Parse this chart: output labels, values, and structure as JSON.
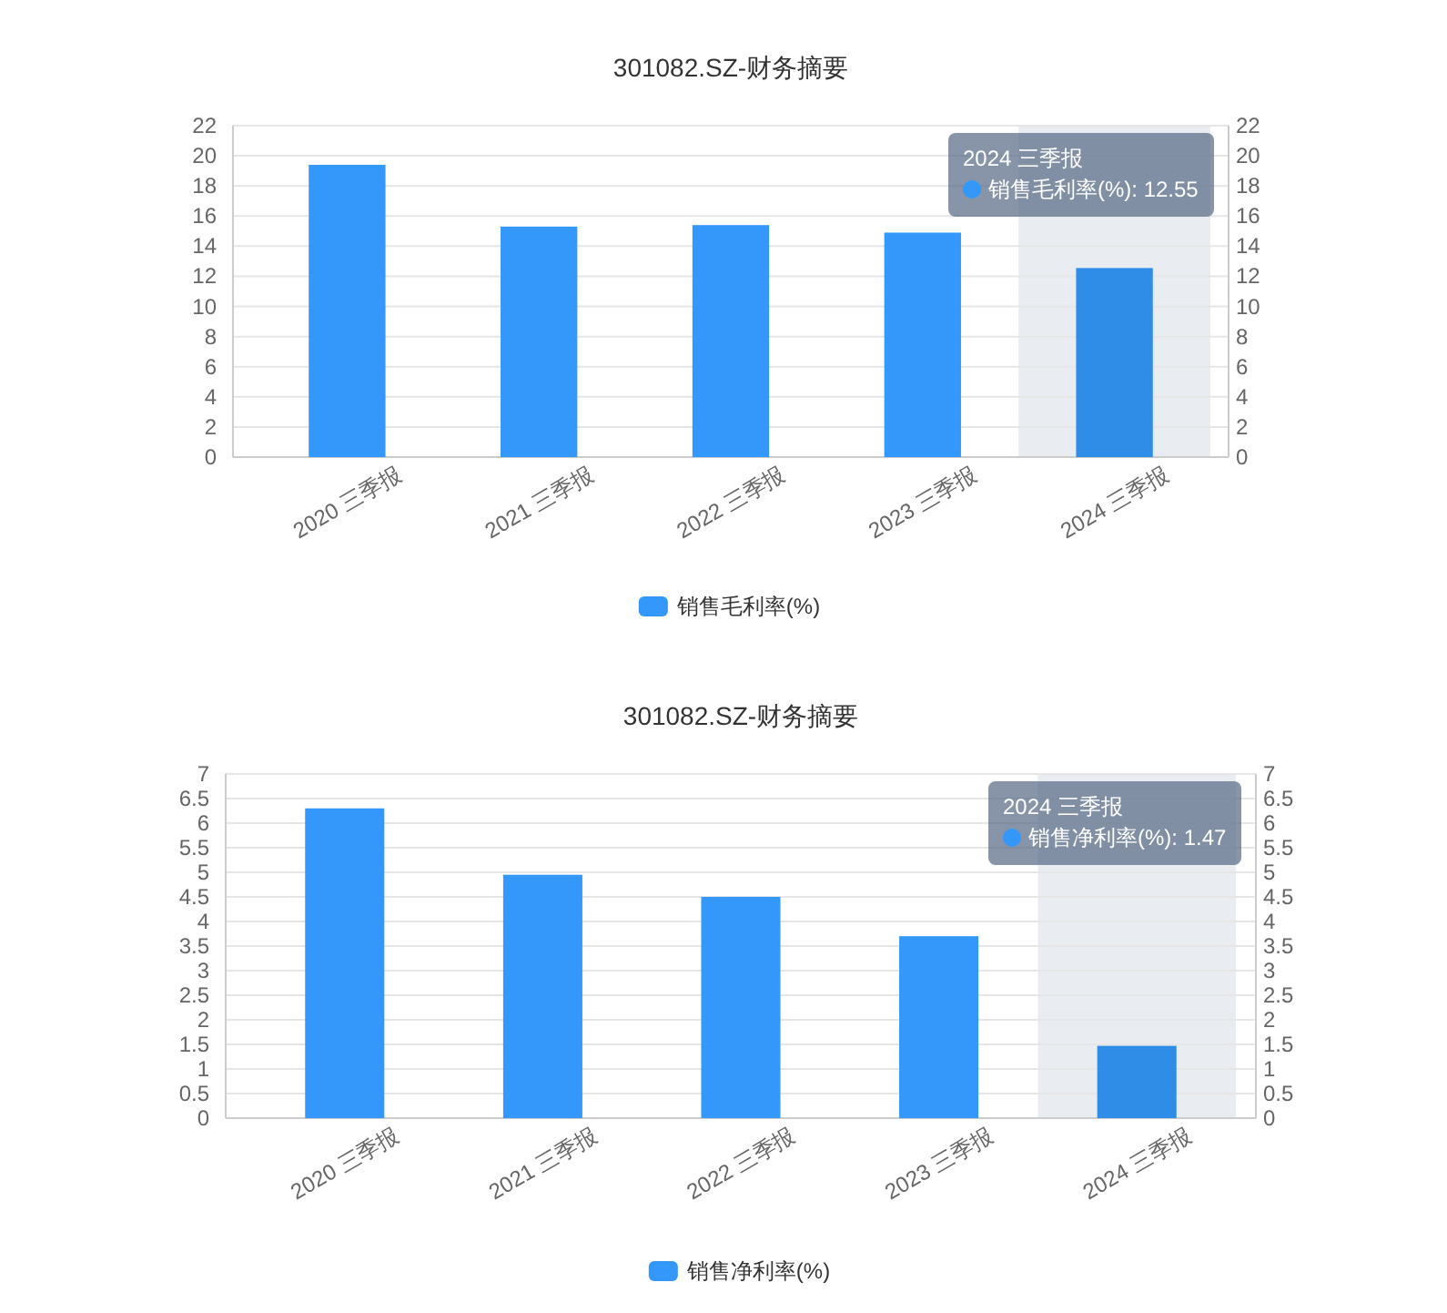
{
  "chart_data": [
    {
      "type": "bar",
      "title": "301082.SZ-财务摘要",
      "categories": [
        "2020 三季报",
        "2021 三季报",
        "2022 三季报",
        "2023 三季报",
        "2024 三季报"
      ],
      "series": [
        {
          "name": "销售毛利率(%)",
          "color": "#3398fa",
          "colors": [
            "#3398fa",
            "#3398fa",
            "#3398fa",
            "#3398fa",
            "#2f8de8"
          ],
          "values": [
            19.4,
            15.3,
            15.4,
            14.9,
            12.55
          ]
        }
      ],
      "ylim": [
        0,
        22
      ],
      "yticks": [
        0,
        2,
        4,
        6,
        8,
        10,
        12,
        14,
        16,
        18,
        20,
        22
      ],
      "y2lim": [
        0,
        22
      ],
      "y2ticks": [
        0,
        2,
        4,
        6,
        8,
        10,
        12,
        14,
        16,
        18,
        20,
        22
      ],
      "grid": "y",
      "legend": "bottom",
      "bands": [
        {
          "axis": "x",
          "from": "2024 三季报",
          "to": "2024 三季报",
          "color": "#e9edf2"
        }
      ],
      "annotations": [
        "2024 三季报",
        "销售毛利率(%): 12.55"
      ]
    },
    {
      "type": "bar",
      "title": "301082.SZ-财务摘要",
      "categories": [
        "2020 三季报",
        "2021 三季报",
        "2022 三季报",
        "2023 三季报",
        "2024 三季报"
      ],
      "series": [
        {
          "name": "销售净利率(%)",
          "color": "#3398fa",
          "colors": [
            "#3398fa",
            "#3398fa",
            "#3398fa",
            "#3398fa",
            "#2f8de8"
          ],
          "values": [
            6.3,
            4.95,
            4.5,
            3.7,
            1.47
          ]
        }
      ],
      "ylim": [
        0,
        7
      ],
      "yticks": [
        0,
        0.5,
        1,
        1.5,
        2,
        2.5,
        3,
        3.5,
        4,
        4.5,
        5,
        5.5,
        6,
        6.5,
        7
      ],
      "y2lim": [
        0,
        7
      ],
      "y2ticks": [
        0,
        0.5,
        1,
        1.5,
        2,
        2.5,
        3,
        3.5,
        4,
        4.5,
        5,
        5.5,
        6,
        6.5,
        7
      ],
      "grid": "y",
      "legend": "bottom",
      "bands": [
        {
          "axis": "x",
          "from": "2024 三季报",
          "to": "2024 三季报",
          "color": "#e9edf2"
        }
      ],
      "annotations": [
        "2024 三季报",
        "销售净利率(%): 1.47"
      ]
    }
  ]
}
